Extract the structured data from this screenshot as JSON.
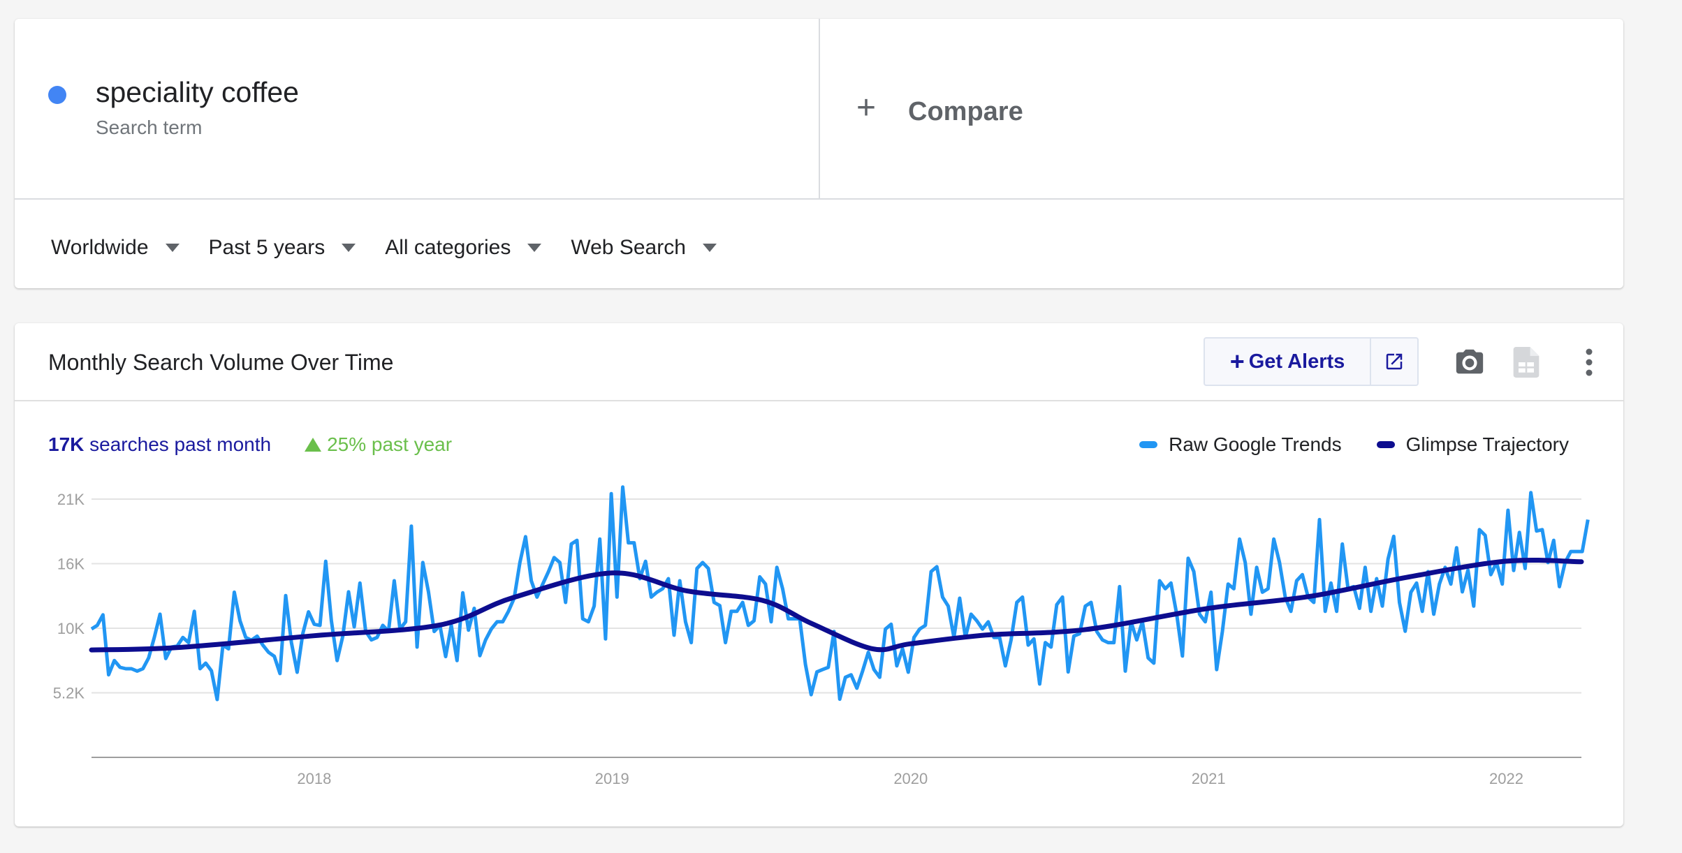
{
  "search": {
    "term": "speciality coffee",
    "term_subtitle": "Search term",
    "term_color": "#4285f4",
    "compare_label": "Compare"
  },
  "filters": [
    {
      "label": "Worldwide"
    },
    {
      "label": "Past 5 years"
    },
    {
      "label": "All categories"
    },
    {
      "label": "Web Search"
    }
  ],
  "chart_card": {
    "title": "Monthly Search Volume Over Time",
    "get_alerts_label": "Get Alerts",
    "stats": {
      "volume_value": "17K",
      "volume_text": "searches past month",
      "growth_text": "25% past year"
    }
  },
  "chart_data": {
    "type": "line",
    "title": "",
    "xlabel": "",
    "ylabel": "",
    "x_range": [
      "2017-10-01",
      "2022-10-01"
    ],
    "x_ticks": [
      "2018",
      "2019",
      "2020",
      "2021",
      "2022"
    ],
    "y_ticks": [
      "5.2K",
      "10K",
      "16K",
      "21K"
    ],
    "y_tick_values": [
      5200,
      10400,
      15600,
      20800
    ],
    "ylim": [
      0,
      20800
    ],
    "grid": true,
    "legend_position": "top-right",
    "series": [
      {
        "name": "Raw Google Trends",
        "color": "#2196f3",
        "start": "2017-10-01",
        "step": "week",
        "values": [
          10340,
          10630,
          11480,
          6650,
          7800,
          7250,
          7140,
          7140,
          6950,
          7140,
          8010,
          9660,
          11530,
          7960,
          8880,
          8960,
          9660,
          9240,
          11760,
          7140,
          7590,
          6970,
          4660,
          9040,
          8740,
          13300,
          11000,
          9660,
          9440,
          9760,
          9040,
          8460,
          8140,
          6750,
          13030,
          9240,
          6860,
          9970,
          11720,
          10720,
          10630,
          15790,
          11000,
          7800,
          9770,
          13330,
          10510,
          14040,
          10160,
          9460,
          9660,
          10630,
          10140,
          14220,
          10330,
          10920,
          18620,
          8880,
          15690,
          13330,
          10140,
          10630,
          8120,
          10630,
          7800,
          13250,
          10250,
          12000,
          8190,
          9460,
          10340,
          10920,
          10920,
          11760,
          12820,
          15690,
          17770,
          14220,
          12910,
          13960,
          14960,
          16090,
          15690,
          12480,
          17180,
          17480,
          11160,
          10920,
          12180,
          17580,
          9540,
          21240,
          12910,
          21770,
          17280,
          17280,
          14390,
          15790,
          12910,
          13300,
          13580,
          14390,
          9840,
          14220,
          10920,
          9240,
          15210,
          15690,
          15210,
          12480,
          12220,
          9240,
          11760,
          11760,
          12480,
          10630,
          11000,
          14540,
          13960,
          10920,
          15300,
          13580,
          11160,
          11160,
          11160,
          7480,
          5050,
          6880,
          7070,
          7250,
          10140,
          4690,
          6450,
          6650,
          5570,
          6950,
          8460,
          7070,
          6450,
          10330,
          10720,
          7370,
          8740,
          6860,
          9660,
          10330,
          10630,
          14960,
          15350,
          12910,
          12180,
          9660,
          12820,
          9660,
          11530,
          11000,
          10330,
          10920,
          9660,
          9660,
          7370,
          9460,
          12480,
          12910,
          9040,
          9540,
          5910,
          9240,
          8880,
          12300,
          12910,
          6880,
          9770,
          9960,
          12180,
          12480,
          10140,
          9460,
          9240,
          9240,
          13750,
          6950,
          10920,
          9460,
          10920,
          8010,
          7590,
          14220,
          13580,
          14040,
          11530,
          8160,
          16040,
          14960,
          11530,
          10920,
          13300,
          7070,
          10140,
          13960,
          13580,
          17580,
          15690,
          11530,
          15300,
          13300,
          13580,
          17580,
          15690,
          12910,
          11760,
          14220,
          14720,
          12910,
          12480,
          19150,
          11760,
          14040,
          11760,
          17180,
          13580,
          13750,
          12000,
          15300,
          11760,
          14390,
          12180,
          15980,
          17800,
          12480,
          10160,
          13300,
          14040,
          11760,
          14960,
          11530,
          13960,
          15300,
          13960,
          16880,
          13330,
          15080,
          12180,
          18340,
          17880,
          14720,
          15690,
          13960,
          19900,
          15050,
          18120,
          15210,
          21320,
          18230,
          18340,
          15690,
          17480,
          13750,
          15690,
          16580,
          16580,
          16580,
          19150
        ]
      },
      {
        "name": "Glimpse Trajectory",
        "color": "#0d0d8f",
        "points": [
          [
            "2017-10-01",
            8650
          ],
          [
            "2018-01-15",
            8850
          ],
          [
            "2018-07-01",
            9800
          ],
          [
            "2018-12-01",
            10650
          ],
          [
            "2019-03-01",
            12850
          ],
          [
            "2019-07-01",
            14850
          ],
          [
            "2019-10-01",
            13400
          ],
          [
            "2020-01-01",
            12650
          ],
          [
            "2020-03-01",
            10800
          ],
          [
            "2020-05-15",
            8750
          ],
          [
            "2020-07-01",
            9150
          ],
          [
            "2020-10-01",
            9850
          ],
          [
            "2021-02-01",
            10300
          ],
          [
            "2021-07-01",
            12000
          ],
          [
            "2021-11-01",
            12950
          ],
          [
            "2022-03-01",
            14500
          ],
          [
            "2022-07-01",
            15800
          ],
          [
            "2022-10-01",
            15750
          ]
        ]
      }
    ]
  }
}
